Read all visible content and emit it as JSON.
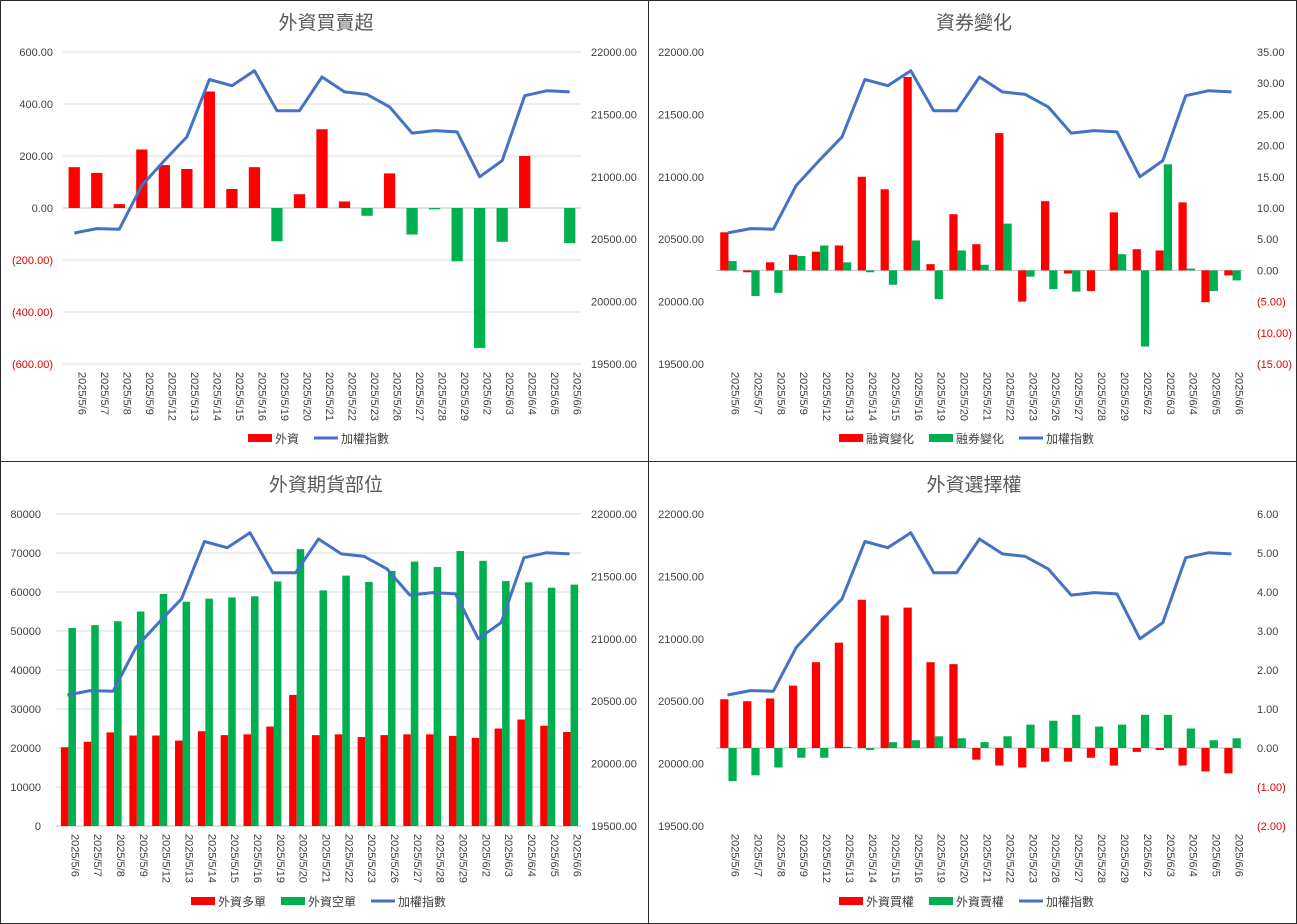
{
  "chart_data": [
    {
      "type": "bar",
      "title": "外資買賣超",
      "categories": [
        "2025/5/6",
        "2025/5/7",
        "2025/5/8",
        "2025/5/9",
        "2025/5/12",
        "2025/5/13",
        "2025/5/14",
        "2025/5/15",
        "2025/5/16",
        "2025/5/19",
        "2025/5/20",
        "2025/5/21",
        "2025/5/22",
        "2025/5/23",
        "2025/5/26",
        "2025/5/27",
        "2025/5/28",
        "2025/5/29",
        "2025/6/2",
        "2025/6/3",
        "2025/6/4",
        "2025/6/5",
        "2025/6/6"
      ],
      "left_axis": {
        "min": -600,
        "max": 600,
        "step": 200,
        "ticks": [
          "(600.00)",
          "(400.00)",
          "(200.00)",
          "0.00",
          "200.00",
          "400.00",
          "600.00"
        ]
      },
      "right_axis": {
        "min": 19500,
        "max": 22000,
        "step": 500,
        "ticks": [
          "19500.00",
          "20000.00",
          "20500.00",
          "21000.00",
          "21500.00",
          "22000.00"
        ]
      },
      "bar_series": [
        {
          "name": "外資",
          "color": "#ff0000",
          "neg_color": "#00b050",
          "values": [
            157,
            135,
            15,
            225,
            165,
            150,
            448,
            73,
            157,
            -128,
            53,
            303,
            25,
            -30,
            133,
            -102,
            -5,
            -205,
            -538,
            -130,
            200,
            0,
            -135
          ]
        }
      ],
      "line_series": {
        "name": "加權指數",
        "color": "#4472c4",
        "values": [
          20550,
          20585,
          20580,
          20930,
          21130,
          21320,
          21780,
          21730,
          21850,
          21530,
          21530,
          21800,
          21680,
          21660,
          21560,
          21350,
          21370,
          21360,
          21000,
          21130,
          21650,
          21690,
          21680
        ]
      },
      "grid": true,
      "legend_position": "bottom"
    },
    {
      "type": "bar",
      "title": "資券變化",
      "categories": [
        "2025/5/6",
        "2025/5/7",
        "2025/5/8",
        "2025/5/9",
        "2025/5/12",
        "2025/5/13",
        "2025/5/14",
        "2025/5/15",
        "2025/5/16",
        "2025/5/19",
        "2025/5/20",
        "2025/5/21",
        "2025/5/22",
        "2025/5/23",
        "2025/5/26",
        "2025/5/27",
        "2025/5/28",
        "2025/5/29",
        "2025/6/2",
        "2025/6/3",
        "2025/6/4",
        "2025/6/5",
        "2025/6/6"
      ],
      "left_axis": {
        "min": 19500,
        "max": 22000,
        "step": 500,
        "ticks": [
          "19500.00",
          "20000.00",
          "20500.00",
          "21000.00",
          "21500.00",
          "22000.00"
        ]
      },
      "right_axis": {
        "min": -15,
        "max": 35,
        "step": 5,
        "ticks": [
          "(15.00)",
          "(10.00)",
          "(5.00)",
          "0.00",
          "5.00",
          "10.00",
          "15.00",
          "20.00",
          "25.00",
          "30.00",
          "35.00"
        ]
      },
      "bar_series": [
        {
          "name": "融資變化",
          "color": "#ff0000",
          "values": [
            6.1,
            -0.3,
            1.3,
            2.5,
            3.0,
            4.0,
            15.0,
            13.0,
            31.0,
            1.0,
            9.0,
            4.2,
            22.0,
            -5.0,
            11.1,
            -0.5,
            -3.3,
            9.3,
            3.4,
            3.2,
            10.9,
            -5.1,
            -0.8
          ]
        },
        {
          "name": "融券變化",
          "color": "#00b050",
          "values": [
            1.5,
            -4.1,
            -3.6,
            2.3,
            4.0,
            1.3,
            -0.3,
            -2.3,
            4.8,
            -4.6,
            3.2,
            0.9,
            7.5,
            -1.0,
            -3.0,
            -3.4,
            0.0,
            2.6,
            -12.2,
            17.0,
            0.3,
            -3.3,
            -1.6
          ]
        }
      ],
      "line_series": {
        "name": "加權指數",
        "color": "#4472c4",
        "values": [
          20550,
          20585,
          20580,
          20930,
          21130,
          21320,
          21780,
          21730,
          21850,
          21530,
          21530,
          21800,
          21680,
          21660,
          21560,
          21350,
          21370,
          21360,
          21000,
          21130,
          21650,
          21690,
          21680
        ]
      },
      "grid": false,
      "legend_position": "bottom"
    },
    {
      "type": "bar",
      "title": "外資期貨部位",
      "categories": [
        "2025/5/6",
        "2025/5/7",
        "2025/5/8",
        "2025/5/9",
        "2025/5/12",
        "2025/5/13",
        "2025/5/14",
        "2025/5/15",
        "2025/5/16",
        "2025/5/19",
        "2025/5/20",
        "2025/5/21",
        "2025/5/22",
        "2025/5/23",
        "2025/5/26",
        "2025/5/27",
        "2025/5/28",
        "2025/5/29",
        "2025/6/2",
        "2025/6/3",
        "2025/6/4",
        "2025/6/5",
        "2025/6/6"
      ],
      "left_axis": {
        "min": 0,
        "max": 80000,
        "step": 10000,
        "ticks": [
          "0",
          "10000",
          "20000",
          "30000",
          "40000",
          "50000",
          "60000",
          "70000",
          "80000"
        ]
      },
      "right_axis": {
        "min": 19500,
        "max": 22000,
        "step": 500,
        "ticks": [
          "19500.00",
          "20000.00",
          "20500.00",
          "21000.00",
          "21500.00",
          "22000.00"
        ]
      },
      "bar_series": [
        {
          "name": "外資多單",
          "color": "#ff0000",
          "values": [
            20200,
            21600,
            24000,
            23200,
            23200,
            21900,
            24300,
            23300,
            23500,
            25500,
            33600,
            23300,
            23500,
            22800,
            23300,
            23500,
            23500,
            23100,
            22600,
            25000,
            27300,
            25700,
            24100
          ]
        },
        {
          "name": "外資空單",
          "color": "#00b050",
          "values": [
            50800,
            51500,
            52500,
            55000,
            59500,
            57500,
            58300,
            58600,
            58900,
            62700,
            71000,
            60400,
            64200,
            62600,
            65400,
            67800,
            66400,
            70500,
            68000,
            62800,
            62500,
            61100,
            61900
          ]
        }
      ],
      "line_series": {
        "name": "加權指數",
        "color": "#4472c4",
        "values": [
          20550,
          20585,
          20580,
          20930,
          21130,
          21320,
          21780,
          21730,
          21850,
          21530,
          21530,
          21800,
          21680,
          21660,
          21560,
          21350,
          21370,
          21360,
          21000,
          21130,
          21650,
          21690,
          21680
        ]
      },
      "grid": true,
      "legend_position": "bottom"
    },
    {
      "type": "bar",
      "title": "外資選擇權",
      "categories": [
        "2025/5/6",
        "2025/5/7",
        "2025/5/8",
        "2025/5/9",
        "2025/5/12",
        "2025/5/13",
        "2025/5/14",
        "2025/5/15",
        "2025/5/16",
        "2025/5/19",
        "2025/5/20",
        "2025/5/21",
        "2025/5/22",
        "2025/5/23",
        "2025/5/26",
        "2025/5/27",
        "2025/5/28",
        "2025/5/29",
        "2025/6/2",
        "2025/6/3",
        "2025/6/4",
        "2025/6/5",
        "2025/6/6"
      ],
      "left_axis": {
        "min": 19500,
        "max": 22000,
        "step": 500,
        "ticks": [
          "19500.00",
          "20000.00",
          "20500.00",
          "21000.00",
          "21500.00",
          "22000.00"
        ]
      },
      "right_axis": {
        "min": -2,
        "max": 6,
        "step": 1,
        "ticks": [
          "(2.00)",
          "(1.00)",
          "0.00",
          "1.00",
          "2.00",
          "3.00",
          "4.00",
          "5.00",
          "6.00"
        ]
      },
      "bar_series": [
        {
          "name": "外資買權",
          "color": "#ff0000",
          "values": [
            1.25,
            1.2,
            1.27,
            1.6,
            2.2,
            2.7,
            3.8,
            3.4,
            3.6,
            2.2,
            2.15,
            -0.3,
            -0.45,
            -0.5,
            -0.35,
            -0.35,
            -0.25,
            -0.45,
            -0.1,
            -0.05,
            -0.45,
            -0.6,
            -0.65
          ]
        },
        {
          "name": "外資賣權",
          "color": "#00b050",
          "values": [
            -0.85,
            -0.7,
            -0.5,
            -0.25,
            -0.25,
            0.03,
            -0.05,
            0.15,
            0.2,
            0.3,
            0.25,
            0.15,
            0.3,
            0.6,
            0.7,
            0.85,
            0.55,
            0.6,
            0.85,
            0.85,
            0.5,
            0.2,
            0.25
          ]
        }
      ],
      "line_series": {
        "name": "加權指數",
        "color": "#4472c4",
        "values": [
          20550,
          20585,
          20580,
          20930,
          21130,
          21320,
          21780,
          21730,
          21850,
          21530,
          21530,
          21800,
          21680,
          21660,
          21560,
          21350,
          21370,
          21360,
          21000,
          21130,
          21650,
          21690,
          21680
        ]
      },
      "grid": false,
      "legend_position": "bottom"
    }
  ]
}
